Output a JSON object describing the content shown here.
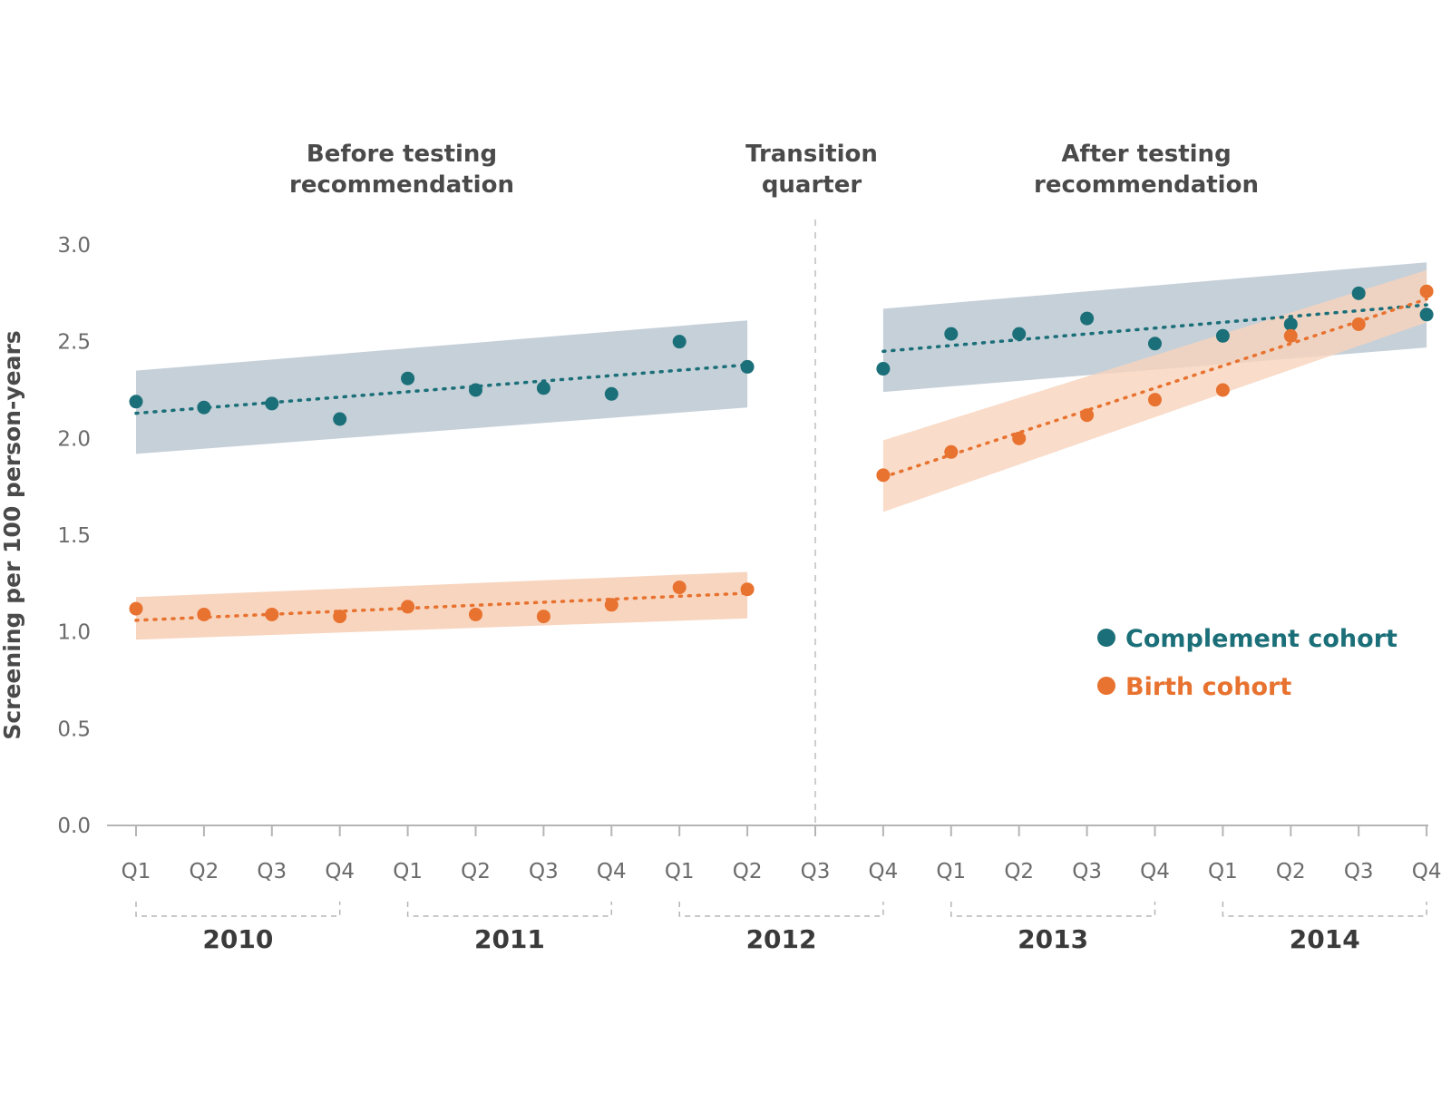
{
  "colors": {
    "complement": "#1b6f78",
    "birth": "#e8722f",
    "complement_band": "#c3ced7",
    "birth_band": "#f8d3bc",
    "axis": "#b5b5b5",
    "text": "#4a4a4a"
  },
  "periods": {
    "before": [
      "Before testing",
      "recommendation"
    ],
    "transition": [
      "Transition",
      "quarter"
    ],
    "after": [
      "After testing",
      "recommendation"
    ]
  },
  "chart_data": {
    "type": "scatter",
    "ylabel": "Screening per 100 person-years",
    "ylim": [
      0,
      3.0
    ],
    "yticks": [
      "0.0",
      "0.5",
      "1.0",
      "1.5",
      "2.0",
      "2.5",
      "3.0"
    ],
    "categories": [
      "Q1",
      "Q2",
      "Q3",
      "Q4",
      "Q1",
      "Q2",
      "Q3",
      "Q4",
      "Q1",
      "Q2",
      "Q3",
      "Q4",
      "Q1",
      "Q2",
      "Q3",
      "Q4",
      "Q1",
      "Q2",
      "Q3",
      "Q4"
    ],
    "years": [
      "2010",
      "2011",
      "2012",
      "2013",
      "2014"
    ],
    "transition_index": 10,
    "series": [
      {
        "name": "Complement cohort",
        "values": [
          2.19,
          2.16,
          2.18,
          2.1,
          2.31,
          2.25,
          2.26,
          2.23,
          2.5,
          2.37,
          null,
          2.36,
          2.54,
          2.54,
          2.62,
          2.49,
          2.53,
          2.59,
          2.75,
          2.64
        ],
        "trend": [
          [
            0,
            2.13
          ],
          [
            9,
            2.38
          ],
          [
            11,
            2.45
          ],
          [
            19,
            2.69
          ]
        ],
        "band": [
          [
            0,
            1.92,
            2.35
          ],
          [
            9,
            2.16,
            2.61
          ],
          [
            11,
            2.24,
            2.67
          ],
          [
            19,
            2.47,
            2.91
          ]
        ]
      },
      {
        "name": "Birth cohort",
        "values": [
          1.12,
          1.09,
          1.09,
          1.08,
          1.13,
          1.09,
          1.08,
          1.14,
          1.23,
          1.22,
          null,
          1.81,
          1.93,
          2.0,
          2.12,
          2.2,
          2.25,
          2.53,
          2.59,
          2.76
        ],
        "trend": [
          [
            0,
            1.06
          ],
          [
            9,
            1.2
          ],
          [
            11,
            1.8
          ],
          [
            19,
            2.72
          ]
        ],
        "band": [
          [
            0,
            0.96,
            1.18
          ],
          [
            9,
            1.07,
            1.31
          ],
          [
            11,
            1.62,
            1.99
          ],
          [
            19,
            2.6,
            2.87
          ]
        ]
      }
    ],
    "legend_position": "right-middle"
  }
}
